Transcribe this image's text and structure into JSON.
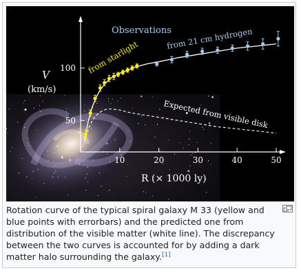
{
  "caption": {
    "text": "Rotation curve of the typical spiral galaxy M 33 (yellow and blue points with errorbars) and the predicted one from distribution of the visible matter (white line). The discrepancy between the two curves is accounted for by adding a dark matter halo surrounding the galaxy.",
    "ref": "[1]"
  },
  "magnify_icon": "enlarge-icon",
  "chart_data": {
    "type": "scatter",
    "title": "Observations",
    "xlabel": "R  (× 1000 ly)",
    "ylabel": "V",
    "ylabel_unit": "(km/s)",
    "xlim": [
      0,
      52
    ],
    "ylim": [
      20,
      140
    ],
    "x_ticks": [
      10,
      20,
      30,
      40,
      50
    ],
    "y_ticks": [
      50,
      100
    ],
    "grid": false,
    "annotations": {
      "starlight": "from  starlight",
      "hydrogen": "from 21 cm hydrogen",
      "expected": "Expected from visible disk"
    },
    "colors": {
      "starlight": "#ffee00",
      "hydrogen": "#9fc8f2",
      "fit": "#ffffff",
      "expected": "#ffffff",
      "axes": "#ffffff"
    },
    "series": [
      {
        "key": "starlight",
        "x": [
          1.3,
          2.5,
          3.7,
          5.0,
          6.1,
          7.3,
          8.5,
          9.6,
          10.8,
          12.0,
          13.2,
          14.4
        ],
        "y": [
          37,
          57,
          71,
          81,
          86,
          90,
          92,
          94,
          96,
          98,
          100,
          102
        ],
        "err": [
          4,
          3,
          3,
          3,
          3,
          3,
          3,
          2,
          2,
          2,
          2,
          2
        ]
      },
      {
        "key": "hydrogen",
        "x": [
          19.5,
          23.3,
          27.2,
          31.1,
          35.0,
          38.8,
          42.7,
          46.6,
          50.5
        ],
        "y": [
          104,
          108,
          113,
          116,
          117,
          119,
          121,
          123,
          128
        ],
        "err": [
          2,
          3,
          3,
          3,
          3,
          3,
          4,
          5,
          7
        ]
      }
    ],
    "fit_curve": {
      "x": [
        1.0,
        2.0,
        3.0,
        4.0,
        5.0,
        6.0,
        7.0,
        8.0,
        10.0,
        12.0,
        14.0,
        17.0,
        20.0,
        25.0,
        30.0,
        35.0,
        40.0,
        45.0,
        50.0
      ],
      "y": [
        32,
        50,
        63,
        72,
        79,
        84,
        88,
        91,
        95,
        98,
        101,
        104,
        106,
        110,
        113,
        116,
        119,
        121,
        123
      ]
    },
    "expected_curve": {
      "x": [
        1.0,
        2.0,
        3.0,
        4.0,
        5.0,
        6.0,
        7.0,
        8.0,
        10.0,
        12.0,
        15.0,
        20.0,
        25.0,
        30.0,
        35.0,
        40.0,
        45.0,
        50.0
      ],
      "y": [
        30,
        42,
        50,
        55,
        58,
        60,
        61,
        61,
        60,
        58,
        56,
        53,
        50,
        47,
        44,
        42,
        40,
        38
      ]
    }
  }
}
